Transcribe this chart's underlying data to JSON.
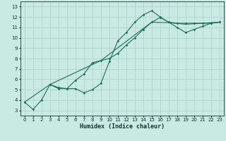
{
  "title": "",
  "xlabel": "Humidex (Indice chaleur)",
  "xlim": [
    -0.5,
    23.5
  ],
  "ylim": [
    2.5,
    13.5
  ],
  "xticks": [
    0,
    1,
    2,
    3,
    4,
    5,
    6,
    7,
    8,
    9,
    10,
    11,
    12,
    13,
    14,
    15,
    16,
    17,
    18,
    19,
    20,
    21,
    22,
    23
  ],
  "yticks": [
    3,
    4,
    5,
    6,
    7,
    8,
    9,
    10,
    11,
    12,
    13
  ],
  "bg_color": "#c8eae2",
  "grid_color": "#aed0c8",
  "line_color": "#1a6e5c",
  "line1_x": [
    0,
    1,
    2,
    3,
    4,
    5,
    6,
    7,
    8,
    9,
    10,
    11,
    12,
    13,
    14,
    15,
    16,
    17,
    18,
    19,
    20,
    21,
    22,
    23
  ],
  "line1_y": [
    3.8,
    3.1,
    4.0,
    5.5,
    5.2,
    5.1,
    5.1,
    4.7,
    5.0,
    5.6,
    7.7,
    9.7,
    10.5,
    11.5,
    12.2,
    12.6,
    12.0,
    11.5,
    11.4,
    11.4,
    11.4,
    11.4,
    11.4,
    11.5
  ],
  "line2_x": [
    3,
    4,
    5,
    6,
    7,
    8,
    9,
    10,
    11,
    12,
    13,
    14,
    15,
    16,
    17,
    18,
    19,
    20,
    21,
    22,
    23
  ],
  "line2_y": [
    5.5,
    5.1,
    5.1,
    5.9,
    6.5,
    7.6,
    7.8,
    8.0,
    8.5,
    9.3,
    10.0,
    10.8,
    11.5,
    11.95,
    11.5,
    11.0,
    10.5,
    10.8,
    11.1,
    11.4,
    11.5
  ],
  "line3_x": [
    0,
    3,
    9,
    15,
    17,
    19,
    21,
    23
  ],
  "line3_y": [
    3.8,
    5.5,
    7.8,
    11.5,
    11.45,
    11.3,
    11.4,
    11.5
  ]
}
